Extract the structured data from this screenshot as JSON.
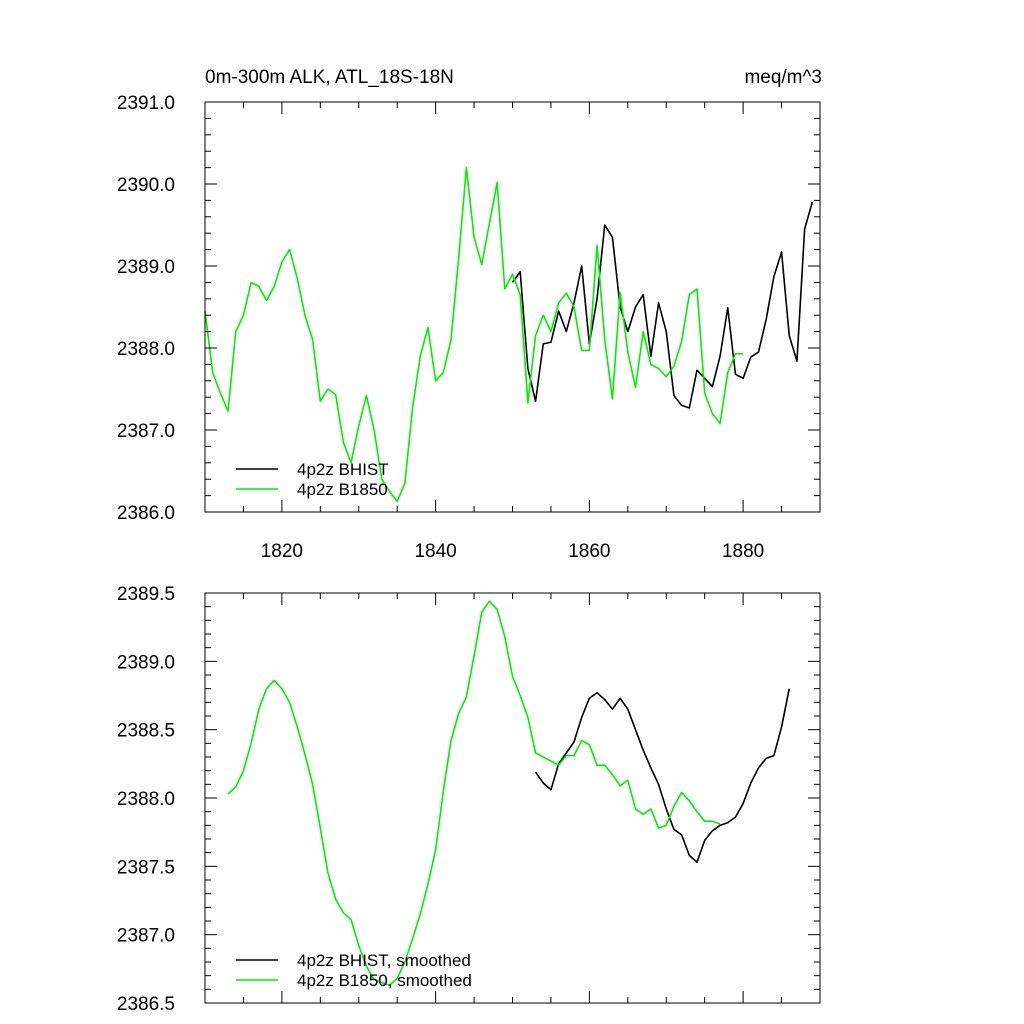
{
  "chart_data": [
    {
      "type": "line",
      "title": "0m-300m ALK, ATL_18S-18N",
      "units": "meq/m^3",
      "xlim": [
        1810,
        1890
      ],
      "ylim": [
        2386.0,
        2391.0
      ],
      "x_ticks": [
        1820,
        1840,
        1860,
        1880
      ],
      "x_tick_labels": [
        "1820",
        "1840",
        "1860",
        "1880"
      ],
      "y_ticks": [
        2386.0,
        2387.0,
        2388.0,
        2389.0,
        2390.0,
        2391.0
      ],
      "y_tick_labels": [
        "2386.0",
        "2387.0",
        "2388.0",
        "2389.0",
        "2390.0",
        "2391.0"
      ],
      "legend_position": "bottom-left",
      "series": [
        {
          "name": "4p2z BHIST",
          "color": "#000000",
          "x": [
            1850,
            1851,
            1852,
            1853,
            1854,
            1855,
            1856,
            1857,
            1858,
            1859,
            1860,
            1861,
            1862,
            1863,
            1864,
            1865,
            1866,
            1867,
            1868,
            1869,
            1870,
            1871,
            1872,
            1873,
            1874,
            1875,
            1876,
            1877,
            1878,
            1879,
            1880,
            1881,
            1882,
            1883,
            1884,
            1885,
            1886,
            1887,
            1888,
            1889
          ],
          "values": [
            2388.8,
            2388.93,
            2387.75,
            2387.35,
            2388.05,
            2388.07,
            2388.45,
            2388.2,
            2388.55,
            2389.0,
            2388.05,
            2388.6,
            2389.5,
            2389.35,
            2388.5,
            2388.2,
            2388.5,
            2388.65,
            2387.9,
            2388.55,
            2388.2,
            2387.42,
            2387.3,
            2387.27,
            2387.73,
            2387.63,
            2387.53,
            2387.9,
            2388.49,
            2387.68,
            2387.63,
            2387.89,
            2387.95,
            2388.35,
            2388.87,
            2389.17,
            2388.15,
            2387.84,
            2389.45,
            2389.78
          ]
        },
        {
          "name": "4p2z B1850",
          "color": "#00ee00",
          "x": [
            1810,
            1811,
            1812,
            1813,
            1814,
            1815,
            1816,
            1817,
            1818,
            1819,
            1820,
            1821,
            1822,
            1823,
            1824,
            1825,
            1826,
            1827,
            1828,
            1829,
            1830,
            1831,
            1832,
            1833,
            1834,
            1835,
            1836,
            1837,
            1838,
            1839,
            1840,
            1841,
            1842,
            1843,
            1844,
            1845,
            1846,
            1847,
            1848,
            1849,
            1850,
            1851,
            1852,
            1853,
            1854,
            1855,
            1856,
            1857,
            1858,
            1859,
            1860,
            1861,
            1862,
            1863,
            1864,
            1865,
            1866,
            1867,
            1868,
            1869,
            1870,
            1871,
            1872,
            1873,
            1874,
            1875,
            1876,
            1877,
            1878,
            1879,
            1880
          ],
          "values": [
            2388.45,
            2387.7,
            2387.45,
            2387.23,
            2388.2,
            2388.4,
            2388.8,
            2388.75,
            2388.58,
            2388.75,
            2389.05,
            2389.2,
            2388.85,
            2388.4,
            2388.1,
            2387.35,
            2387.5,
            2387.43,
            2386.85,
            2386.6,
            2387.05,
            2387.42,
            2387.0,
            2386.4,
            2386.25,
            2386.13,
            2386.35,
            2387.27,
            2387.9,
            2388.25,
            2387.6,
            2387.7,
            2388.1,
            2389.1,
            2390.2,
            2389.35,
            2389.02,
            2389.52,
            2390.02,
            2388.72,
            2388.9,
            2388.65,
            2387.33,
            2388.15,
            2388.4,
            2388.2,
            2388.55,
            2388.67,
            2388.5,
            2387.97,
            2387.97,
            2389.25,
            2388.1,
            2387.38,
            2388.68,
            2387.95,
            2387.52,
            2388.2,
            2387.8,
            2387.75,
            2387.65,
            2387.78,
            2388.08,
            2388.65,
            2388.72,
            2387.45,
            2387.2,
            2387.08,
            2387.7,
            2387.93,
            2387.93
          ]
        }
      ]
    },
    {
      "type": "line",
      "title": "",
      "xlim": [
        1810,
        1890
      ],
      "ylim": [
        2386.5,
        2389.5
      ],
      "x_ticks": [
        1820,
        1840,
        1860,
        1880
      ],
      "y_ticks": [
        2386.5,
        2387.0,
        2387.5,
        2388.0,
        2388.5,
        2389.0,
        2389.5
      ],
      "y_tick_labels": [
        "2386.5",
        "2387.0",
        "2387.5",
        "2388.0",
        "2388.5",
        "2389.0",
        "2389.5"
      ],
      "legend_position": "bottom-left",
      "series": [
        {
          "name": "4p2z BHIST, smoothed",
          "color": "#000000",
          "x": [
            1853,
            1854,
            1855,
            1856,
            1857,
            1858,
            1859,
            1860,
            1861,
            1862,
            1863,
            1864,
            1865,
            1866,
            1867,
            1868,
            1869,
            1870,
            1871,
            1872,
            1873,
            1874,
            1875,
            1876,
            1877,
            1878,
            1879,
            1880,
            1881,
            1882,
            1883,
            1884,
            1885,
            1886
          ],
          "values": [
            2388.19,
            2388.11,
            2388.06,
            2388.25,
            2388.33,
            2388.41,
            2388.59,
            2388.73,
            2388.77,
            2388.72,
            2388.65,
            2388.73,
            2388.65,
            2388.5,
            2388.35,
            2388.22,
            2388.1,
            2387.92,
            2387.77,
            2387.73,
            2387.58,
            2387.53,
            2387.69,
            2387.76,
            2387.8,
            2387.82,
            2387.86,
            2387.96,
            2388.11,
            2388.22,
            2388.29,
            2388.31,
            2388.52,
            2388.8
          ]
        },
        {
          "name": "4p2z B1850, smoothed",
          "color": "#00ee00",
          "x": [
            1813,
            1814,
            1815,
            1816,
            1817,
            1818,
            1819,
            1820,
            1821,
            1822,
            1823,
            1824,
            1825,
            1826,
            1827,
            1828,
            1829,
            1830,
            1831,
            1832,
            1833,
            1834,
            1835,
            1836,
            1837,
            1838,
            1839,
            1840,
            1841,
            1842,
            1843,
            1844,
            1845,
            1846,
            1847,
            1848,
            1849,
            1850,
            1851,
            1852,
            1853,
            1854,
            1855,
            1856,
            1857,
            1858,
            1859,
            1860,
            1861,
            1862,
            1863,
            1864,
            1865,
            1866,
            1867,
            1868,
            1869,
            1870,
            1871,
            1872,
            1873,
            1874,
            1875,
            1876,
            1877
          ],
          "values": [
            2388.03,
            2388.08,
            2388.2,
            2388.4,
            2388.65,
            2388.8,
            2388.86,
            2388.8,
            2388.7,
            2388.52,
            2388.32,
            2388.1,
            2387.78,
            2387.45,
            2387.26,
            2387.16,
            2387.11,
            2386.92,
            2386.77,
            2386.67,
            2386.65,
            2386.63,
            2386.68,
            2386.8,
            2386.97,
            2387.15,
            2387.37,
            2387.62,
            2388.05,
            2388.42,
            2388.62,
            2388.74,
            2389.04,
            2389.36,
            2389.44,
            2389.38,
            2389.18,
            2388.89,
            2388.75,
            2388.59,
            2388.33,
            2388.3,
            2388.27,
            2388.24,
            2388.31,
            2388.31,
            2388.42,
            2388.39,
            2388.24,
            2388.24,
            2388.17,
            2388.09,
            2388.13,
            2387.92,
            2387.88,
            2387.92,
            2387.78,
            2387.8,
            2387.94,
            2388.04,
            2387.98,
            2387.9,
            2387.83,
            2387.83,
            2387.81
          ]
        }
      ]
    }
  ]
}
